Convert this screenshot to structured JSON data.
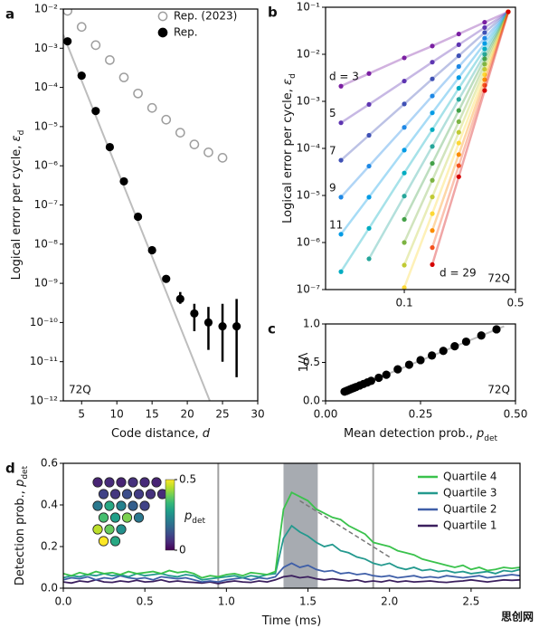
{
  "chart_data": [
    {
      "panel": "a",
      "type": "scatter",
      "xlabel": {
        "text": "Code distance, ",
        "var": "d"
      },
      "ylabel": {
        "text": "Logical error per cycle, ",
        "var": "ε",
        "sub": "d"
      },
      "xlim": [
        2.4,
        30
      ],
      "xticks": [
        5,
        10,
        15,
        20,
        25,
        30
      ],
      "yscale": "log",
      "ylim": [
        1e-12,
        0.01
      ],
      "yticks": [
        {
          "value": 1e-12,
          "label": "10⁻¹²"
        },
        {
          "value": 1e-11,
          "label": "10⁻¹¹"
        },
        {
          "value": 1e-10,
          "label": "10⁻¹⁰"
        },
        {
          "value": 1e-09,
          "label": "10⁻⁹"
        },
        {
          "value": 1e-08,
          "label": "10⁻⁸"
        },
        {
          "value": 1e-07,
          "label": "10⁻⁷"
        },
        {
          "value": 1e-06,
          "label": "10⁻⁶"
        },
        {
          "value": 1e-05,
          "label": "10⁻⁵"
        },
        {
          "value": 0.0001,
          "label": "10⁻⁴"
        },
        {
          "value": 0.001,
          "label": "10⁻³"
        },
        {
          "value": 0.01,
          "label": "10⁻²"
        }
      ],
      "annotation": "72Q",
      "annotation_loc": "lower left",
      "legend": "upper right",
      "series": [
        {
          "color": "#bdbdbd",
          "marker": "line",
          "x": [
            2.4,
            23.2
          ],
          "values": [
            0.0022,
            1e-12
          ]
        },
        {
          "name": "Rep. (2023)",
          "color": "#9e9e9e",
          "marker": "open",
          "x": [
            3,
            5,
            7,
            9,
            11,
            13,
            15,
            17,
            19,
            21,
            23,
            25
          ],
          "values": [
            0.009,
            0.0035,
            0.0012,
            0.0005,
            0.00018,
            7e-05,
            3e-05,
            1.5e-05,
            7e-06,
            3.5e-06,
            2.2e-06,
            1.6e-06
          ]
        },
        {
          "name": "Rep.",
          "color": "#000000",
          "marker": "filled",
          "x": [
            3,
            5,
            7,
            9,
            11,
            13,
            15,
            17,
            19,
            21,
            23,
            25,
            27
          ],
          "values": [
            0.0015,
            0.0002,
            2.5e-05,
            3e-06,
            4e-07,
            5e-08,
            7e-09,
            1.3e-09,
            4e-10,
            1.7e-10,
            1e-10,
            8e-11,
            8e-11
          ],
          "lower": [
            null,
            null,
            null,
            null,
            null,
            null,
            null,
            null,
            3e-10,
            6e-11,
            2e-11,
            1e-11,
            4e-12
          ],
          "upper": [
            null,
            null,
            null,
            null,
            null,
            null,
            null,
            null,
            6e-10,
            3e-10,
            2.5e-10,
            3e-10,
            4e-10
          ]
        }
      ]
    },
    {
      "panel": "b",
      "type": "scatter",
      "ylabel": {
        "text": "Logical error per cycle, ",
        "var": "ε",
        "sub": "d"
      },
      "xscale": "log",
      "xlim": [
        0.032,
        0.5
      ],
      "xticks": [
        0.1,
        0.5
      ],
      "yscale": "log",
      "ylim": [
        1e-07,
        0.1
      ],
      "yticks": [
        {
          "value": 1e-07,
          "label": "10⁻⁷"
        },
        {
          "value": 1e-06,
          "label": "10⁻⁶"
        },
        {
          "value": 1e-05,
          "label": "10⁻⁵"
        },
        {
          "value": 0.0001,
          "label": "10⁻⁴"
        },
        {
          "value": 0.001,
          "label": "10⁻³"
        },
        {
          "value": 0.01,
          "label": "10⁻²"
        },
        {
          "value": 0.1,
          "label": "10⁻¹"
        }
      ],
      "annotation": "72Q",
      "annotation_loc": "lower right",
      "series": [
        {
          "label": "d = 3",
          "color": "#7b1fa2",
          "marker": "dotline",
          "x": [
            0.04,
            0.06,
            0.1,
            0.15,
            0.22,
            0.32,
            0.45
          ],
          "values": [
            0.0021,
            0.0039,
            0.0084,
            0.015,
            0.027,
            0.048,
            0.08
          ]
        },
        {
          "label": "5",
          "color": "#5e35b1",
          "marker": "dotline",
          "x": [
            0.04,
            0.06,
            0.1,
            0.15,
            0.22,
            0.32,
            0.45
          ],
          "values": [
            0.00035,
            0.00086,
            0.0027,
            0.0068,
            0.016,
            0.037,
            0.08
          ]
        },
        {
          "label": "7",
          "color": "#3f51b5",
          "marker": "dotline",
          "x": [
            0.04,
            0.06,
            0.1,
            0.15,
            0.22,
            0.32,
            0.45
          ],
          "values": [
            5.6e-05,
            0.00019,
            0.00088,
            0.003,
            0.0093,
            0.029,
            0.08
          ]
        },
        {
          "label": "9",
          "color": "#1e88e5",
          "marker": "dotline",
          "x": [
            0.04,
            0.06,
            0.1,
            0.15,
            0.22,
            0.32,
            0.45
          ],
          "values": [
            9.2e-06,
            4.2e-05,
            0.00028,
            0.0013,
            0.0055,
            0.022,
            0.08
          ]
        },
        {
          "label": "11",
          "color": "#039be5",
          "marker": "dotline",
          "x": [
            0.04,
            0.06,
            0.1,
            0.15,
            0.22,
            0.32,
            0.45
          ],
          "values": [
            1.5e-06,
            9.2e-06,
            9.2e-05,
            0.00057,
            0.0032,
            0.017,
            0.08
          ]
        },
        {
          "color": "#00acc1",
          "marker": "dotline",
          "x": [
            0.04,
            0.06,
            0.1,
            0.15,
            0.22,
            0.32,
            0.45
          ],
          "values": [
            2.4e-07,
            2e-06,
            3e-05,
            0.00025,
            0.0019,
            0.013,
            0.08
          ]
        },
        {
          "color": "#26a69a",
          "marker": "dotline",
          "x": [
            0.06,
            0.1,
            0.15,
            0.22,
            0.32,
            0.45
          ],
          "values": [
            4.5e-07,
            9.7e-06,
            0.00011,
            0.0011,
            0.01,
            0.08
          ]
        },
        {
          "color": "#43a047",
          "marker": "dotline",
          "x": [
            0.1,
            0.15,
            0.22,
            0.32,
            0.45
          ],
          "values": [
            3.1e-06,
            4.8e-05,
            0.00064,
            0.008,
            0.08
          ]
        },
        {
          "color": "#7cb342",
          "marker": "dotline",
          "x": [
            0.1,
            0.15,
            0.22,
            0.32,
            0.45
          ],
          "values": [
            1e-06,
            2.1e-05,
            0.00037,
            0.0062,
            0.08
          ]
        },
        {
          "color": "#c0ca33",
          "marker": "dotline",
          "x": [
            0.1,
            0.15,
            0.22,
            0.32,
            0.45
          ],
          "values": [
            3.3e-07,
            9.3e-06,
            0.00022,
            0.0048,
            0.08
          ]
        },
        {
          "color": "#fdd835",
          "marker": "dotline",
          "x": [
            0.1,
            0.15,
            0.22,
            0.32,
            0.45
          ],
          "values": [
            1.1e-07,
            4.1e-06,
            0.00013,
            0.0037,
            0.08
          ]
        },
        {
          "color": "#fb8c00",
          "marker": "dotline",
          "x": [
            0.15,
            0.22,
            0.32,
            0.45
          ],
          "values": [
            1.8e-06,
            7.4e-05,
            0.0029,
            0.08
          ]
        },
        {
          "color": "#f4511e",
          "marker": "dotline",
          "x": [
            0.15,
            0.22,
            0.32,
            0.45
          ],
          "values": [
            7.8e-07,
            4.3e-05,
            0.0022,
            0.08
          ]
        },
        {
          "label": "d = 29",
          "color": "#d50000",
          "marker": "dotline",
          "x": [
            0.15,
            0.22,
            0.32,
            0.45
          ],
          "values": [
            3.4e-07,
            2.5e-05,
            0.0017,
            0.08
          ]
        }
      ]
    },
    {
      "panel": "c",
      "type": "scatter",
      "xlabel": {
        "text": "Mean detection prob., ",
        "var": "p",
        "sub": "det"
      },
      "ylabel": {
        "text": "1/Λ"
      },
      "xlim": [
        0,
        0.5
      ],
      "xticks": [
        {
          "value": 0,
          "label": "0.00"
        },
        0.25,
        {
          "value": 0.5,
          "label": "0.50"
        }
      ],
      "ylim": [
        0,
        1
      ],
      "yticks": [
        {
          "value": 0,
          "label": "0.0"
        },
        0.5,
        {
          "value": 1,
          "label": "1.0"
        }
      ],
      "annotation": "72Q",
      "annotation_loc": "lower right",
      "series": [
        {
          "color": "#bdbdbd",
          "marker": "line",
          "x": [
            0.04,
            0.47
          ],
          "values": [
            0.1,
            0.97
          ]
        },
        {
          "color": "#000000",
          "marker": "filled",
          "x": [
            0.05,
            0.055,
            0.06,
            0.065,
            0.07,
            0.075,
            0.08,
            0.09,
            0.1,
            0.11,
            0.12,
            0.14,
            0.16,
            0.19,
            0.22,
            0.25,
            0.28,
            0.31,
            0.34,
            0.37,
            0.41,
            0.45
          ],
          "values": [
            0.12,
            0.13,
            0.14,
            0.15,
            0.16,
            0.17,
            0.18,
            0.2,
            0.22,
            0.24,
            0.26,
            0.3,
            0.34,
            0.41,
            0.47,
            0.53,
            0.59,
            0.65,
            0.71,
            0.77,
            0.85,
            0.93
          ]
        }
      ]
    },
    {
      "panel": "d",
      "type": "line",
      "xlabel": {
        "text": "Time (ms)"
      },
      "ylabel": {
        "text": "Detection prob., ",
        "var": "p",
        "sub": "det"
      },
      "xlim": [
        0,
        2.8
      ],
      "xticks": [
        {
          "value": 0,
          "label": "0.0"
        },
        0.5,
        {
          "value": 1,
          "label": "1.0"
        },
        1.5,
        {
          "value": 2,
          "label": "2.0"
        },
        2.5
      ],
      "ylim": [
        0,
        0.6
      ],
      "yticks": [
        {
          "value": 0,
          "label": "0.0"
        },
        0.2,
        0.4,
        0.6
      ],
      "legend": "upper right",
      "vlines": [
        0.95,
        1.9
      ],
      "span": [
        1.35,
        1.56
      ],
      "guide": {
        "x": [
          1.45,
          2.0
        ],
        "values": [
          0.42,
          0.15
        ]
      },
      "x": [
        0,
        0.05,
        0.1,
        0.15,
        0.2,
        0.25,
        0.3,
        0.35,
        0.4,
        0.45,
        0.5,
        0.55,
        0.6,
        0.65,
        0.7,
        0.75,
        0.8,
        0.85,
        0.9,
        0.95,
        1.0,
        1.05,
        1.1,
        1.15,
        1.2,
        1.25,
        1.3,
        1.35,
        1.4,
        1.45,
        1.5,
        1.55,
        1.6,
        1.65,
        1.7,
        1.75,
        1.8,
        1.85,
        1.9,
        1.95,
        2.0,
        2.05,
        2.1,
        2.15,
        2.2,
        2.25,
        2.3,
        2.35,
        2.4,
        2.45,
        2.5,
        2.55,
        2.6,
        2.65,
        2.7,
        2.75,
        2.8
      ],
      "series": [
        {
          "name": "Quartile 4",
          "color": "#3ac24c",
          "values": [
            0.07,
            0.06,
            0.075,
            0.065,
            0.08,
            0.07,
            0.075,
            0.065,
            0.08,
            0.07,
            0.075,
            0.08,
            0.07,
            0.085,
            0.075,
            0.08,
            0.07,
            0.05,
            0.06,
            0.055,
            0.065,
            0.07,
            0.06,
            0.075,
            0.07,
            0.065,
            0.08,
            0.38,
            0.46,
            0.44,
            0.42,
            0.38,
            0.36,
            0.34,
            0.33,
            0.3,
            0.28,
            0.26,
            0.22,
            0.21,
            0.2,
            0.18,
            0.17,
            0.16,
            0.14,
            0.13,
            0.12,
            0.11,
            0.1,
            0.11,
            0.09,
            0.1,
            0.085,
            0.09,
            0.1,
            0.095,
            0.1
          ]
        },
        {
          "name": "Quartile 3",
          "color": "#23998e",
          "values": [
            0.05,
            0.06,
            0.055,
            0.065,
            0.06,
            0.07,
            0.06,
            0.065,
            0.055,
            0.07,
            0.06,
            0.065,
            0.07,
            0.06,
            0.055,
            0.065,
            0.06,
            0.04,
            0.045,
            0.05,
            0.055,
            0.06,
            0.05,
            0.06,
            0.055,
            0.065,
            0.07,
            0.24,
            0.3,
            0.27,
            0.25,
            0.22,
            0.2,
            0.21,
            0.18,
            0.17,
            0.15,
            0.14,
            0.12,
            0.11,
            0.12,
            0.1,
            0.09,
            0.1,
            0.085,
            0.09,
            0.08,
            0.085,
            0.075,
            0.08,
            0.07,
            0.075,
            0.08,
            0.07,
            0.085,
            0.08,
            0.09
          ]
        },
        {
          "name": "Quartile 2",
          "color": "#3f5fa8",
          "values": [
            0.04,
            0.05,
            0.045,
            0.055,
            0.04,
            0.05,
            0.045,
            0.06,
            0.05,
            0.045,
            0.05,
            0.04,
            0.055,
            0.05,
            0.045,
            0.05,
            0.04,
            0.03,
            0.035,
            0.03,
            0.04,
            0.045,
            0.05,
            0.04,
            0.05,
            0.045,
            0.055,
            0.1,
            0.12,
            0.1,
            0.11,
            0.09,
            0.08,
            0.085,
            0.07,
            0.075,
            0.065,
            0.07,
            0.06,
            0.055,
            0.06,
            0.05,
            0.055,
            0.06,
            0.05,
            0.055,
            0.05,
            0.06,
            0.055,
            0.05,
            0.055,
            0.06,
            0.05,
            0.055,
            0.06,
            0.065,
            0.06
          ]
        },
        {
          "name": "Quartile 1",
          "color": "#3b1f5e",
          "values": [
            0.03,
            0.025,
            0.035,
            0.03,
            0.04,
            0.03,
            0.028,
            0.035,
            0.03,
            0.038,
            0.03,
            0.032,
            0.04,
            0.03,
            0.035,
            0.03,
            0.028,
            0.025,
            0.03,
            0.022,
            0.03,
            0.035,
            0.03,
            0.028,
            0.035,
            0.03,
            0.04,
            0.055,
            0.06,
            0.05,
            0.055,
            0.045,
            0.04,
            0.045,
            0.04,
            0.035,
            0.04,
            0.03,
            0.035,
            0.03,
            0.038,
            0.03,
            0.035,
            0.03,
            0.032,
            0.035,
            0.03,
            0.028,
            0.032,
            0.035,
            0.04,
            0.035,
            0.03,
            0.035,
            0.04,
            0.038,
            0.04
          ]
        }
      ],
      "inset": {
        "label": {
          "var": "p",
          "sub": "det"
        },
        "clim": [
          0,
          0.5
        ],
        "cticks": [
          0,
          0.5
        ],
        "values": [
          [
            0.05,
            0.06,
            0.05,
            0.07,
            0.06,
            0.05
          ],
          [
            0.1,
            0.08,
            0.12,
            0.09,
            0.07,
            0.06
          ],
          [
            0.2,
            0.3,
            0.22,
            0.15,
            0.1
          ],
          [
            0.35,
            0.28,
            0.4,
            0.2
          ],
          [
            0.45,
            0.38,
            0.25
          ],
          [
            0.5,
            0.3
          ]
        ]
      }
    }
  ],
  "watermark": "思创网"
}
